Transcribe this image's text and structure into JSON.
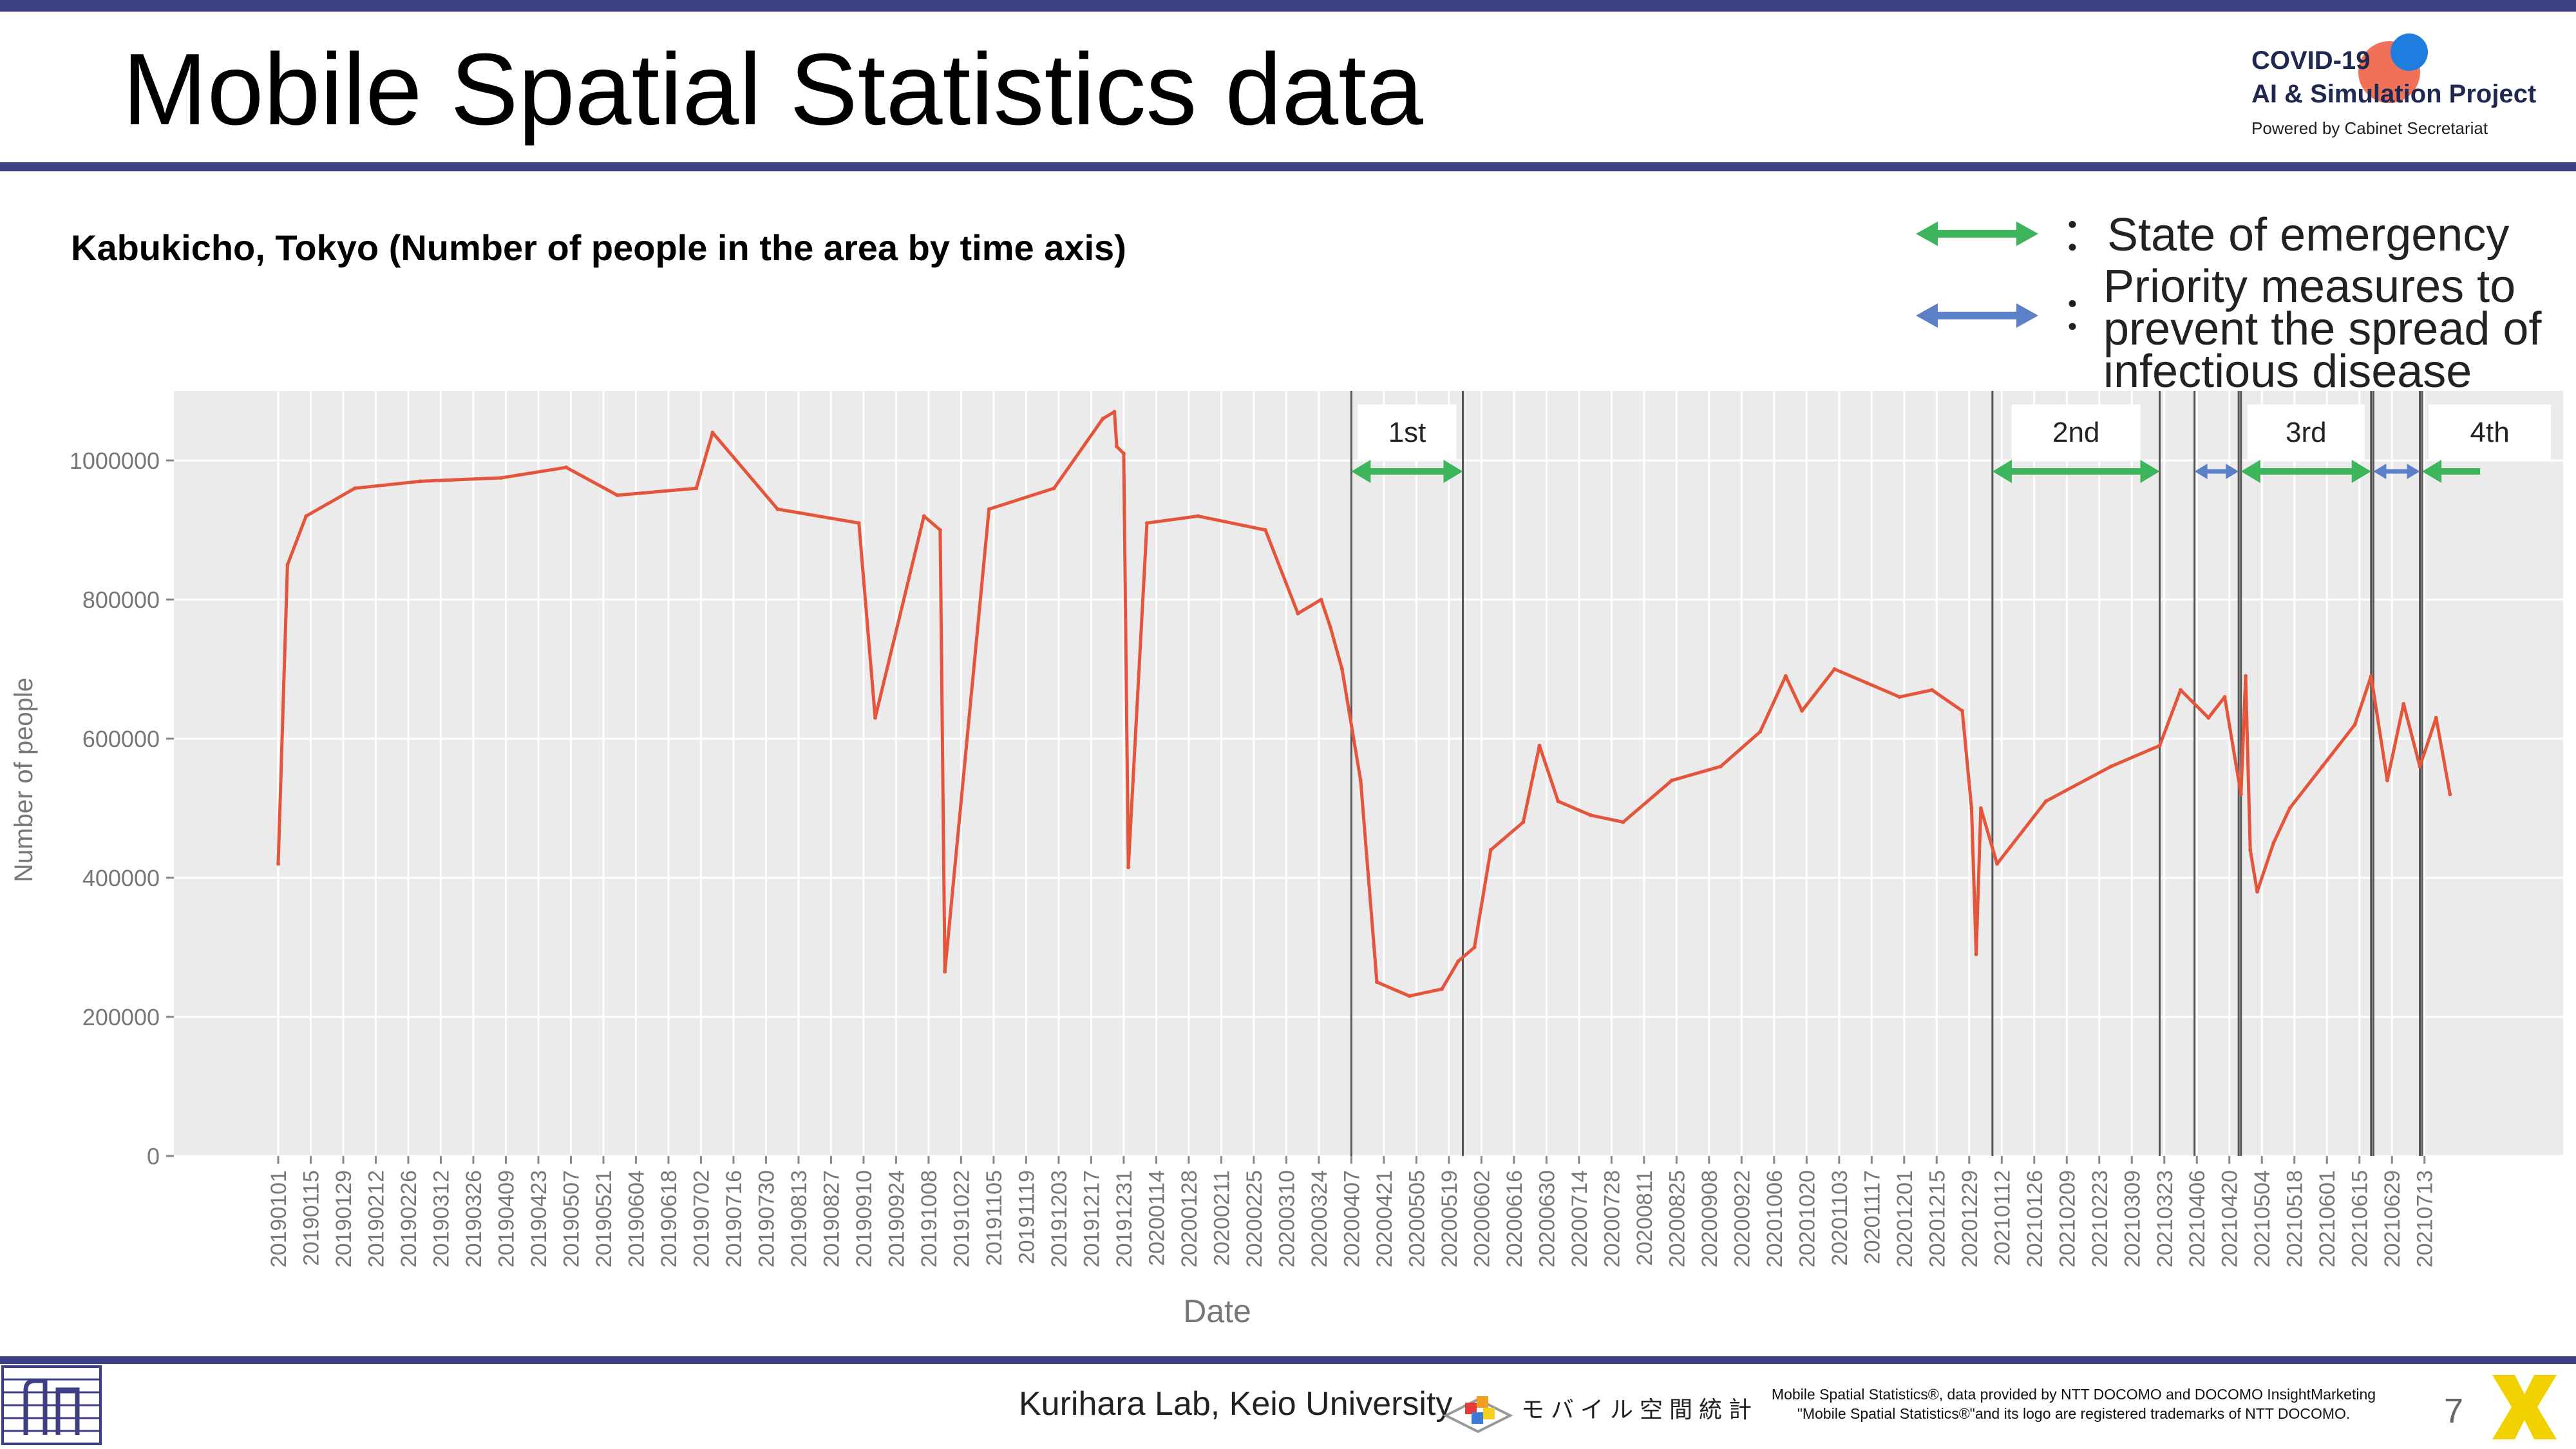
{
  "slide": {
    "title": "Mobile Spatial Statistics data",
    "subtitle": "Kabukicho, Tokyo (Number of people in the area by time axis)",
    "page_number": "7"
  },
  "logo": {
    "line1": "COVID-19",
    "line2": "AI & Simulation Project",
    "line3": "Powered by Cabinet Secretariat",
    "dot_colors": [
      "#f0644a",
      "#1f7de0"
    ]
  },
  "legend": [
    {
      "color": "#3cb55b",
      "text": "：State of emergency"
    },
    {
      "color": "#5b80c8",
      "marker": "：",
      "lines": [
        "Priority measures to",
        "prevent the spread of",
        "infectious disease"
      ]
    }
  ],
  "footer": {
    "lab": "Kurihara Lab, Keio University",
    "brand": "モバイル空間統計",
    "note_line1": "Mobile Spatial Statistics®, data provided by NTT DOCOMO and DOCOMO InsightMarketing",
    "note_line2": "\"Mobile Spatial Statistics®\"and its logo are registered trademarks of NTT DOCOMO."
  },
  "colors": {
    "band": "#3d3f84",
    "line": "#e5553b",
    "plot_bg": "#ebebeb",
    "emergency": "#3cb55b",
    "priority": "#5b80c8"
  },
  "chart_data": {
    "type": "line",
    "xlabel": "Date",
    "ylabel": "Number of people",
    "ylim": [
      0,
      1100000
    ],
    "yticks": [
      0,
      200000,
      400000,
      600000,
      800000,
      1000000
    ],
    "x_tick_labels": [
      "20190101",
      "20190115",
      "20190129",
      "20190212",
      "20190226",
      "20190312",
      "20190326",
      "20190409",
      "20190423",
      "20190507",
      "20190521",
      "20190604",
      "20190618",
      "20190702",
      "20190716",
      "20190730",
      "20190813",
      "20190827",
      "20190910",
      "20190924",
      "20191008",
      "20191022",
      "20191105",
      "20191119",
      "20191203",
      "20191217",
      "20191231",
      "20200114",
      "20200128",
      "20200211",
      "20200225",
      "20200310",
      "20200324",
      "20200407",
      "20200421",
      "20200505",
      "20200519",
      "20200602",
      "20200616",
      "20200630",
      "20200714",
      "20200728",
      "20200811",
      "20200825",
      "20200908",
      "20200922",
      "20201006",
      "20201020",
      "20201103",
      "20201117",
      "20201201",
      "20201215",
      "20201229",
      "20210112",
      "20210126",
      "20210209",
      "20210223",
      "20210309",
      "20210323",
      "20210406",
      "20210420",
      "20210504",
      "20210518",
      "20210601",
      "20210615",
      "20210629",
      "20210713"
    ],
    "series": [
      {
        "x": [
          "20190101",
          "20190105",
          "20190113",
          "20190203",
          "20190303",
          "20190407",
          "20190505",
          "20190527",
          "20190630",
          "20190707",
          "20190804",
          "20190908",
          "20190915",
          "20191006",
          "20191013",
          "20191015",
          "20191103",
          "20191201",
          "20191222",
          "20191227",
          "20191228",
          "20191231",
          "20200102",
          "20200110",
          "20200201",
          "20200301",
          "20200315",
          "20200325",
          "20200329",
          "20200403",
          "20200411",
          "20200418",
          "20200502",
          "20200516",
          "20200523",
          "20200530",
          "20200606",
          "20200620",
          "20200627",
          "20200705",
          "20200719",
          "20200802",
          "20200823",
          "20200913",
          "20200930",
          "20201011",
          "20201018",
          "20201101",
          "20201115",
          "20201129",
          "20201213",
          "20201226",
          "20201230",
          "20210101",
          "20210103",
          "20210110",
          "20210131",
          "20210228",
          "20210321",
          "20210330",
          "20210411",
          "20210418",
          "20210425",
          "20210427",
          "20210429",
          "20210502",
          "20210509",
          "20210516",
          "20210530",
          "20210613",
          "20210620",
          "20210627",
          "20210704",
          "20210711",
          "20210718",
          "20210724"
        ],
        "values": [
          420000,
          850000,
          920000,
          960000,
          970000,
          975000,
          990000,
          950000,
          960000,
          1040000,
          930000,
          910000,
          630000,
          920000,
          900000,
          265000,
          930000,
          960000,
          1060000,
          1070000,
          1020000,
          1010000,
          415000,
          910000,
          920000,
          900000,
          780000,
          800000,
          760000,
          700000,
          540000,
          250000,
          230000,
          240000,
          280000,
          300000,
          440000,
          480000,
          590000,
          510000,
          490000,
          480000,
          540000,
          560000,
          610000,
          690000,
          640000,
          700000,
          680000,
          660000,
          670000,
          640000,
          500000,
          290000,
          500000,
          420000,
          510000,
          560000,
          590000,
          670000,
          630000,
          660000,
          520000,
          690000,
          440000,
          380000,
          450000,
          500000,
          560000,
          620000,
          690000,
          540000,
          650000,
          560000,
          630000,
          520000
        ]
      }
    ],
    "periods": [
      {
        "label": "1st",
        "type": "emergency",
        "start": "20200407",
        "end": "20200525"
      },
      {
        "label": "2nd",
        "type": "emergency",
        "start": "20210108",
        "end": "20210321"
      },
      {
        "type": "priority",
        "start": "20210405",
        "end": "20210424"
      },
      {
        "label": "3rd",
        "type": "emergency",
        "start": "20210425",
        "end": "20210620"
      },
      {
        "type": "priority",
        "start": "20210621",
        "end": "20210711"
      },
      {
        "label": "4th",
        "type": "emergency",
        "start": "20210712",
        "end": ""
      }
    ]
  }
}
